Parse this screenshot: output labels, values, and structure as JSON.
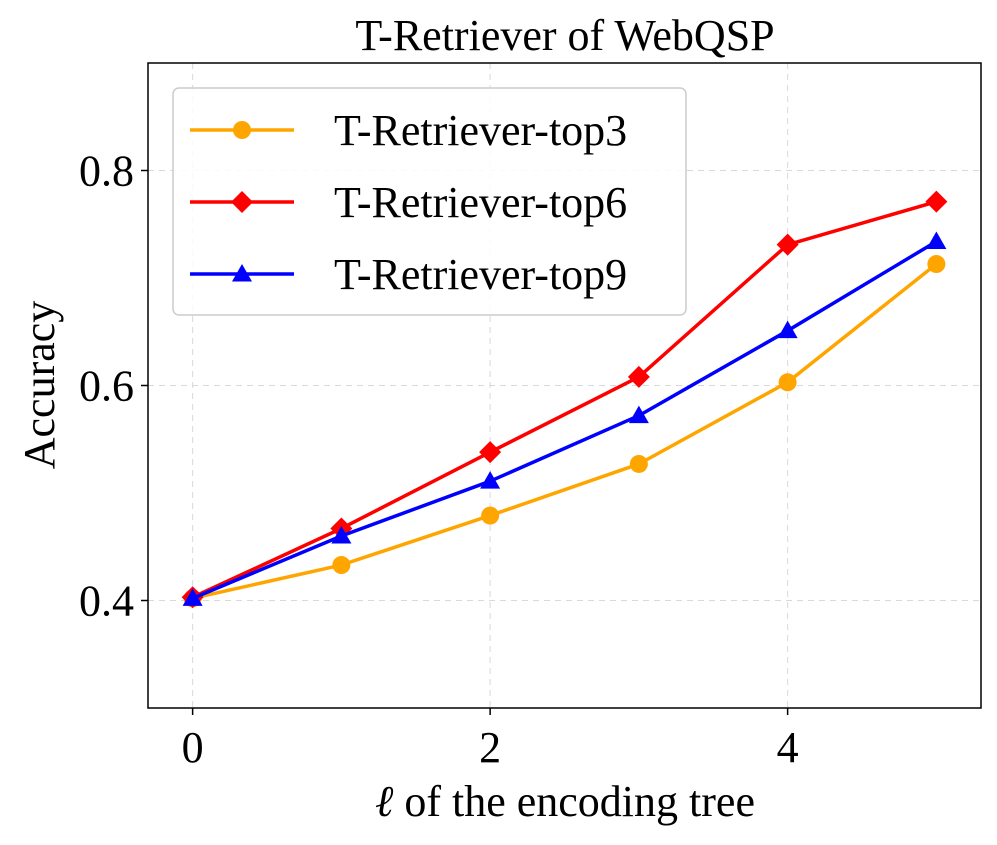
{
  "chart_data": {
    "type": "line",
    "title": "T-Retriever of WebQSP",
    "xlabel_symbol": "ℓ",
    "xlabel_rest": " of the encoding tree",
    "ylabel": "Accuracy",
    "x": [
      0,
      1,
      2,
      3,
      4,
      5
    ],
    "xlim": [
      -0.3,
      5.3
    ],
    "ylim": [
      0.3,
      0.9
    ],
    "x_ticks": [
      0,
      2,
      4
    ],
    "x_tick_labels": [
      "0",
      "2",
      "4"
    ],
    "y_ticks": [
      0.4,
      0.6,
      0.8
    ],
    "y_tick_labels": [
      "0.4",
      "0.6",
      "0.8"
    ],
    "grid": true,
    "legend_position": "top-left",
    "series": [
      {
        "name": "T-Retriever-top3",
        "color": "#FFA500",
        "marker": "circle",
        "values": [
          0.402,
          0.433,
          0.479,
          0.527,
          0.603,
          0.713
        ]
      },
      {
        "name": "T-Retriever-top6",
        "color": "#FF0000",
        "marker": "diamond",
        "values": [
          0.403,
          0.467,
          0.538,
          0.608,
          0.731,
          0.771
        ]
      },
      {
        "name": "T-Retriever-top9",
        "color": "#0000FF",
        "marker": "triangle",
        "values": [
          0.402,
          0.46,
          0.511,
          0.572,
          0.651,
          0.734
        ]
      }
    ]
  }
}
